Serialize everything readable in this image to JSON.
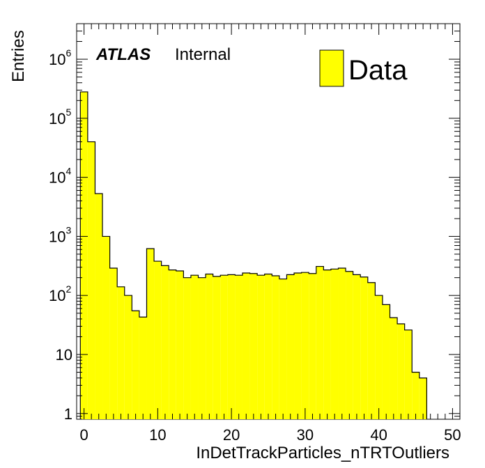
{
  "chart_data": {
    "type": "histogram",
    "title": "",
    "xlabel": "InDetTrackParticles_nTRTOutliers",
    "ylabel": "Entries",
    "xlim": [
      -1,
      51
    ],
    "ylim": [
      0.8,
      4000000
    ],
    "yscale": "log",
    "grid": false,
    "bin_width": 1,
    "bin_start": -0.5,
    "x_ticks": [
      "0",
      "10",
      "20",
      "30",
      "40",
      "50"
    ],
    "y_ticks": [
      {
        "base": "1",
        "exp": ""
      },
      {
        "base": "10",
        "exp": ""
      },
      {
        "base": "10",
        "exp": "2"
      },
      {
        "base": "10",
        "exp": "3"
      },
      {
        "base": "10",
        "exp": "4"
      },
      {
        "base": "10",
        "exp": "5"
      },
      {
        "base": "10",
        "exp": "6"
      }
    ],
    "fill_color": "#ffff00",
    "line_color": "#000000",
    "legend": {
      "position": "top-right",
      "entries": [
        "Data"
      ]
    },
    "label": {
      "bold": "ATLAS",
      "text": "Internal"
    },
    "series": [
      {
        "name": "Data",
        "values": [
          280000,
          40000,
          5300,
          1000,
          290,
          140,
          100,
          55,
          43,
          620,
          380,
          320,
          270,
          260,
          200,
          220,
          200,
          230,
          210,
          220,
          225,
          220,
          240,
          235,
          220,
          230,
          215,
          190,
          225,
          240,
          245,
          235,
          310,
          270,
          280,
          290,
          255,
          225,
          205,
          165,
          100,
          70,
          42,
          33,
          26,
          5,
          4
        ]
      }
    ]
  }
}
